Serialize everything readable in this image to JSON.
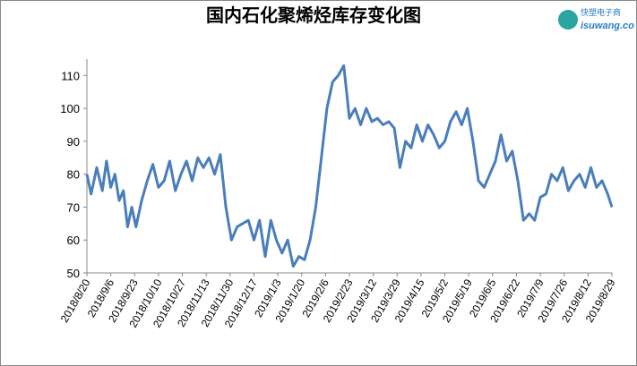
{
  "chart_data": {
    "type": "line",
    "title": "国内石化聚烯烃库存变化图",
    "x": [
      "2018/8/20",
      "2018/8/23",
      "2018/8/27",
      "2018/8/31",
      "2018/9/3",
      "2018/9/6",
      "2018/9/9",
      "2018/9/12",
      "2018/9/15",
      "2018/9/18",
      "2018/9/21",
      "2018/9/24",
      "2018/9/28",
      "2018/10/2",
      "2018/10/6",
      "2018/10/10",
      "2018/10/14",
      "2018/10/18",
      "2018/10/22",
      "2018/10/26",
      "2018/10/30",
      "2018/11/3",
      "2018/11/7",
      "2018/11/11",
      "2018/11/15",
      "2018/11/19",
      "2018/11/23",
      "2018/11/27",
      "2018/12/1",
      "2018/12/5",
      "2018/12/9",
      "2018/12/13",
      "2018/12/17",
      "2018/12/21",
      "2018/12/25",
      "2018/12/29",
      "2019/1/2",
      "2019/1/6",
      "2019/1/10",
      "2019/1/14",
      "2019/1/18",
      "2019/1/22",
      "2019/1/26",
      "2019/1/30",
      "2019/2/3",
      "2019/2/7",
      "2019/2/11",
      "2019/2/15",
      "2019/2/19",
      "2019/2/23",
      "2019/2/27",
      "2019/3/3",
      "2019/3/7",
      "2019/3/11",
      "2019/3/15",
      "2019/3/19",
      "2019/3/23",
      "2019/3/27",
      "2019/3/31",
      "2019/4/4",
      "2019/4/8",
      "2019/4/12",
      "2019/4/16",
      "2019/4/20",
      "2019/4/24",
      "2019/4/28",
      "2019/5/2",
      "2019/5/6",
      "2019/5/10",
      "2019/5/14",
      "2019/5/18",
      "2019/5/22",
      "2019/5/26",
      "2019/5/30",
      "2019/6/3",
      "2019/6/7",
      "2019/6/11",
      "2019/6/15",
      "2019/6/19",
      "2019/6/23",
      "2019/6/27",
      "2019/7/1",
      "2019/7/5",
      "2019/7/9",
      "2019/7/13",
      "2019/7/17",
      "2019/7/21",
      "2019/7/25",
      "2019/7/29",
      "2019/8/2",
      "2019/8/6",
      "2019/8/10",
      "2019/8/14",
      "2019/8/18",
      "2019/8/22",
      "2019/8/26",
      "2019/8/29"
    ],
    "series": [
      {
        "color": "#4a7ebb",
        "values": [
          80,
          74,
          82,
          75,
          84,
          76,
          80,
          72,
          75,
          64,
          70,
          64,
          72,
          78,
          83,
          76,
          78,
          84,
          75,
          80,
          84,
          78,
          85,
          82,
          85,
          80,
          86,
          70,
          60,
          64,
          65,
          66,
          60,
          66,
          55,
          66,
          60,
          56,
          60,
          52,
          55,
          54,
          60,
          70,
          85,
          100,
          108,
          110,
          113,
          97,
          100,
          95,
          100,
          96,
          97,
          95,
          96,
          94,
          82,
          90,
          88,
          95,
          90,
          95,
          92,
          88,
          90,
          96,
          99,
          95,
          100,
          90,
          78,
          76,
          80,
          84,
          92,
          84,
          87,
          78,
          66,
          68,
          66,
          73,
          74,
          80,
          78,
          82,
          75,
          78,
          80,
          76,
          82,
          76,
          78,
          74,
          70
        ]
      }
    ],
    "xlim": [
      "2018/8/20",
      "2019/8/29"
    ],
    "xticks": [
      "2018/8/20",
      "2018/9/6",
      "2018/9/23",
      "2018/10/10",
      "2018/10/27",
      "2018/11/13",
      "2018/11/30",
      "2018/12/17",
      "2019/1/3",
      "2019/1/20",
      "2019/2/6",
      "2019/2/23",
      "2019/3/12",
      "2019/3/29",
      "2019/4/15",
      "2019/5/2",
      "2019/5/19",
      "2019/6/5",
      "2019/6/22",
      "2019/7/9",
      "2019/7/26",
      "2019/8/12",
      "2019/8/29"
    ],
    "ylim": [
      50,
      115
    ],
    "yticks": [
      50,
      60,
      70,
      80,
      90,
      100,
      110
    ]
  },
  "logo": {
    "name": "快塑电子商",
    "url": "isuwang.co"
  }
}
